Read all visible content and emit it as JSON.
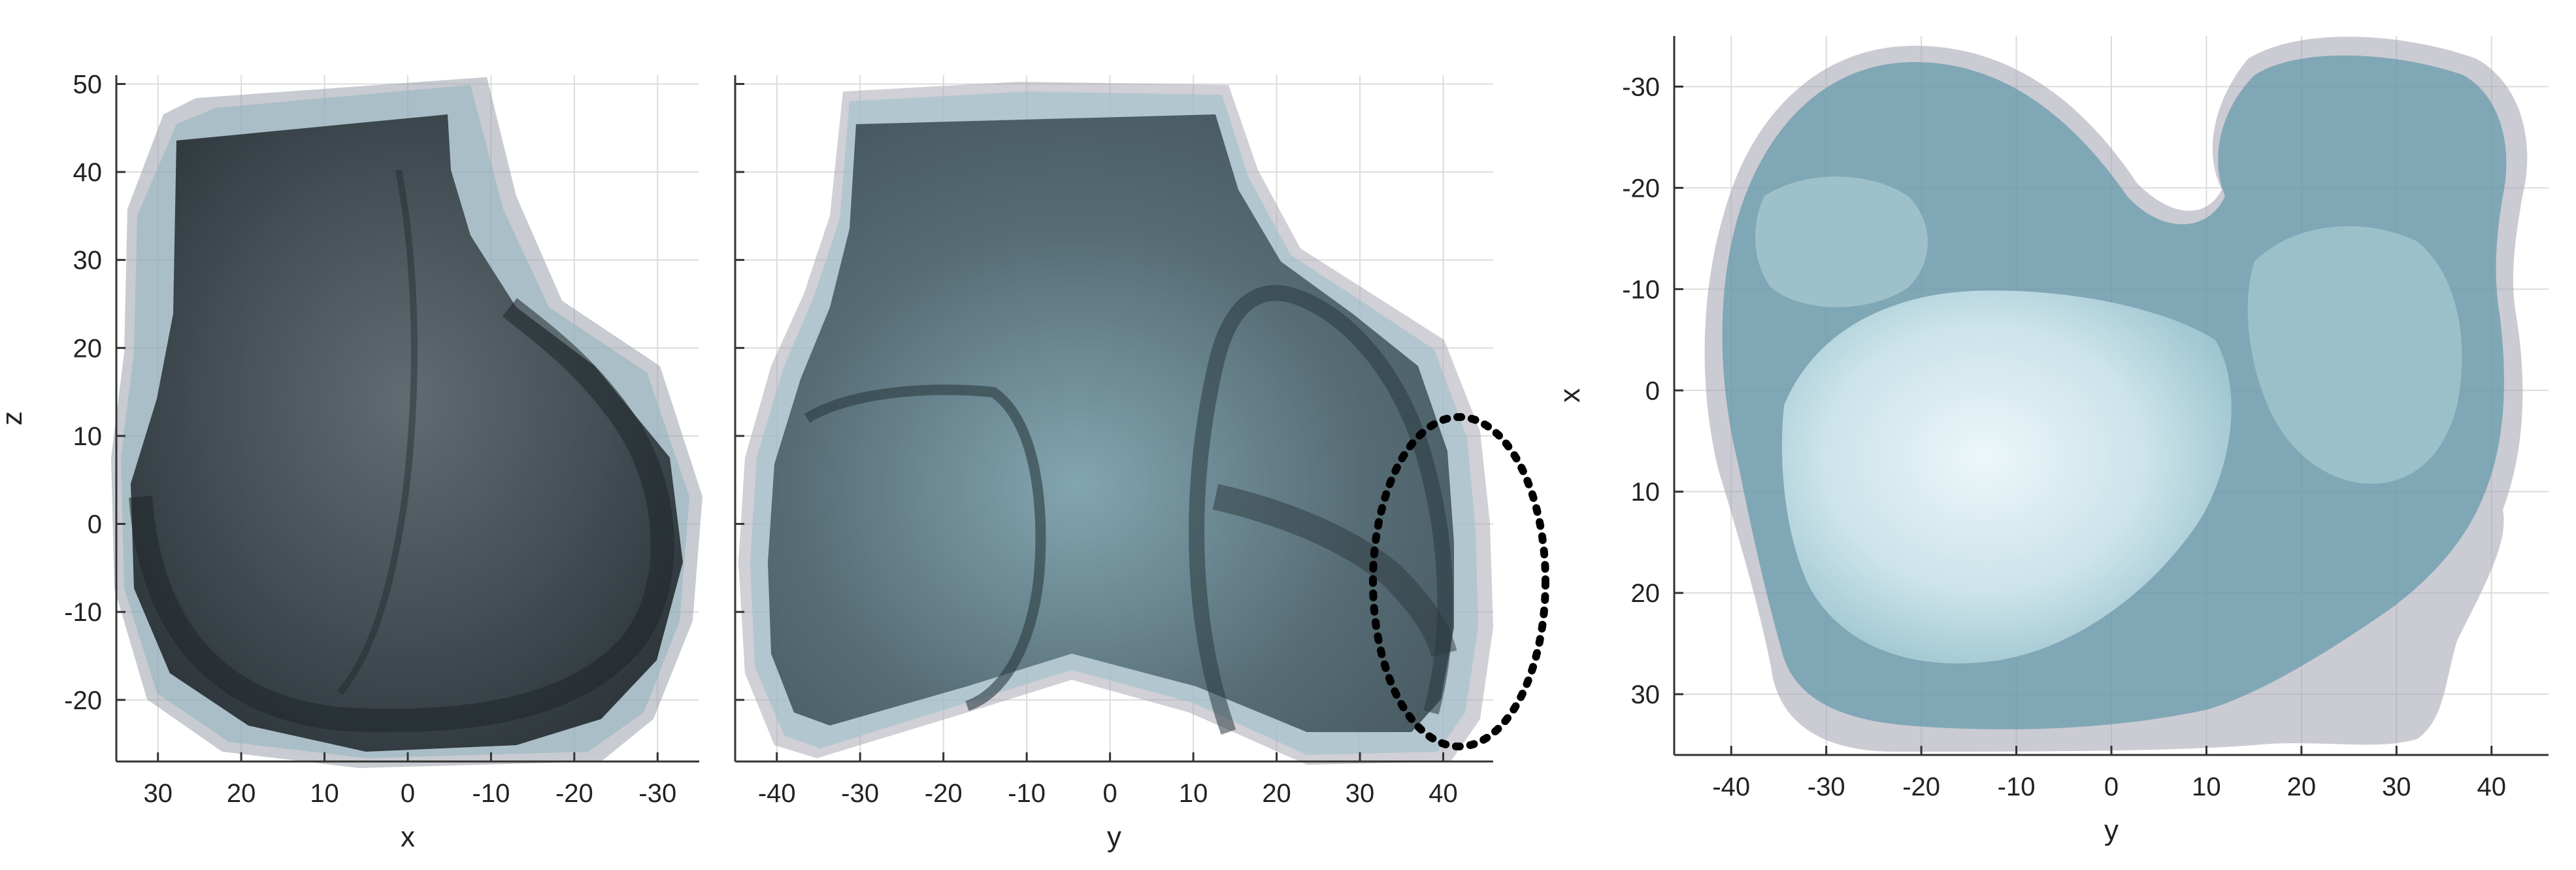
{
  "chart_data": [
    {
      "type": "other",
      "panel": "x-z view",
      "xlabel": "x",
      "ylabel": "z",
      "xlim": [
        35,
        -35
      ],
      "ylim": [
        -27,
        51
      ],
      "xticks": [
        30,
        20,
        10,
        0,
        -10,
        -20,
        -30
      ],
      "yticks": [
        50,
        40,
        30,
        20,
        10,
        0,
        -10,
        -20
      ],
      "grid": true,
      "colors": {
        "shape_dark": "#2b3339",
        "shape_teal": "#8fb4be",
        "shape_gray": "#8a8e99"
      }
    },
    {
      "type": "other",
      "panel": "y-z view",
      "xlabel": "y",
      "ylabel": "",
      "xlim": [
        -45,
        46
      ],
      "ylim": [
        -27,
        51
      ],
      "xticks": [
        -40,
        -30,
        -20,
        -10,
        0,
        10,
        20,
        30,
        40
      ],
      "grid": true,
      "annotation": "dotted-ellipse",
      "colors": {
        "shape_dark": "#36454d",
        "shape_teal": "#9ec0c9"
      }
    },
    {
      "type": "other",
      "panel": "y-x view",
      "xlabel": "y",
      "ylabel": "x",
      "xlim": [
        -46,
        46
      ],
      "ylim": [
        36,
        -35
      ],
      "xticks": [
        -40,
        -30,
        -20,
        -10,
        0,
        10,
        20,
        30,
        40
      ],
      "yticks": [
        -30,
        -20,
        -10,
        0,
        10,
        20,
        30
      ],
      "grid": true,
      "colors": {
        "shape_teal": "#5f97a8",
        "shape_light": "#d8ecf0",
        "shape_gray": "#a9a9b6"
      }
    }
  ]
}
